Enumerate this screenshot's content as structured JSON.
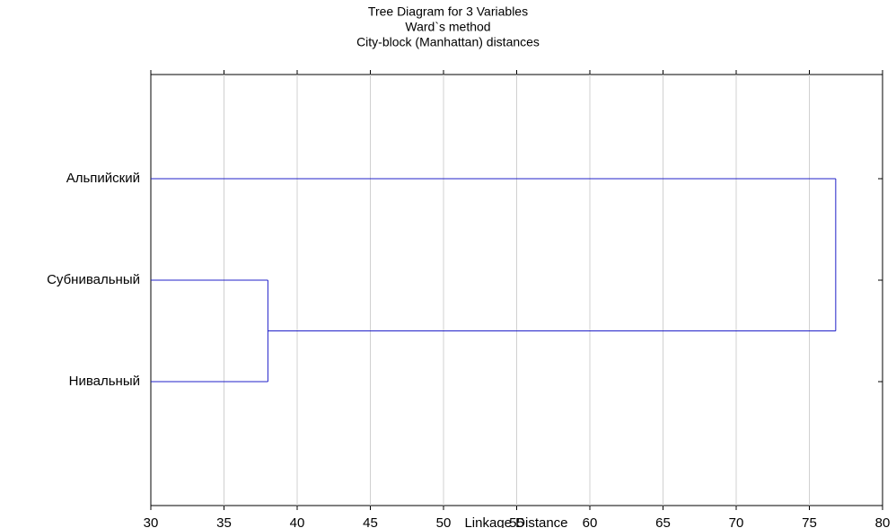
{
  "chart_data": {
    "type": "dendrogram",
    "title": [
      "Tree Diagram for 3 Variables",
      "Ward`s method",
      "City-block (Manhattan) distances"
    ],
    "categories": [
      "Альпийский",
      "Субнивальный",
      "Нивальный"
    ],
    "merge_heights": [
      38.0,
      76.8
    ],
    "color": "#2020c8",
    "xlabel": "Linkage Distance",
    "xlim": [
      30,
      80
    ],
    "xticks": [
      30,
      35,
      40,
      45,
      50,
      55,
      60,
      65,
      70,
      75,
      80
    ],
    "grid": true
  }
}
